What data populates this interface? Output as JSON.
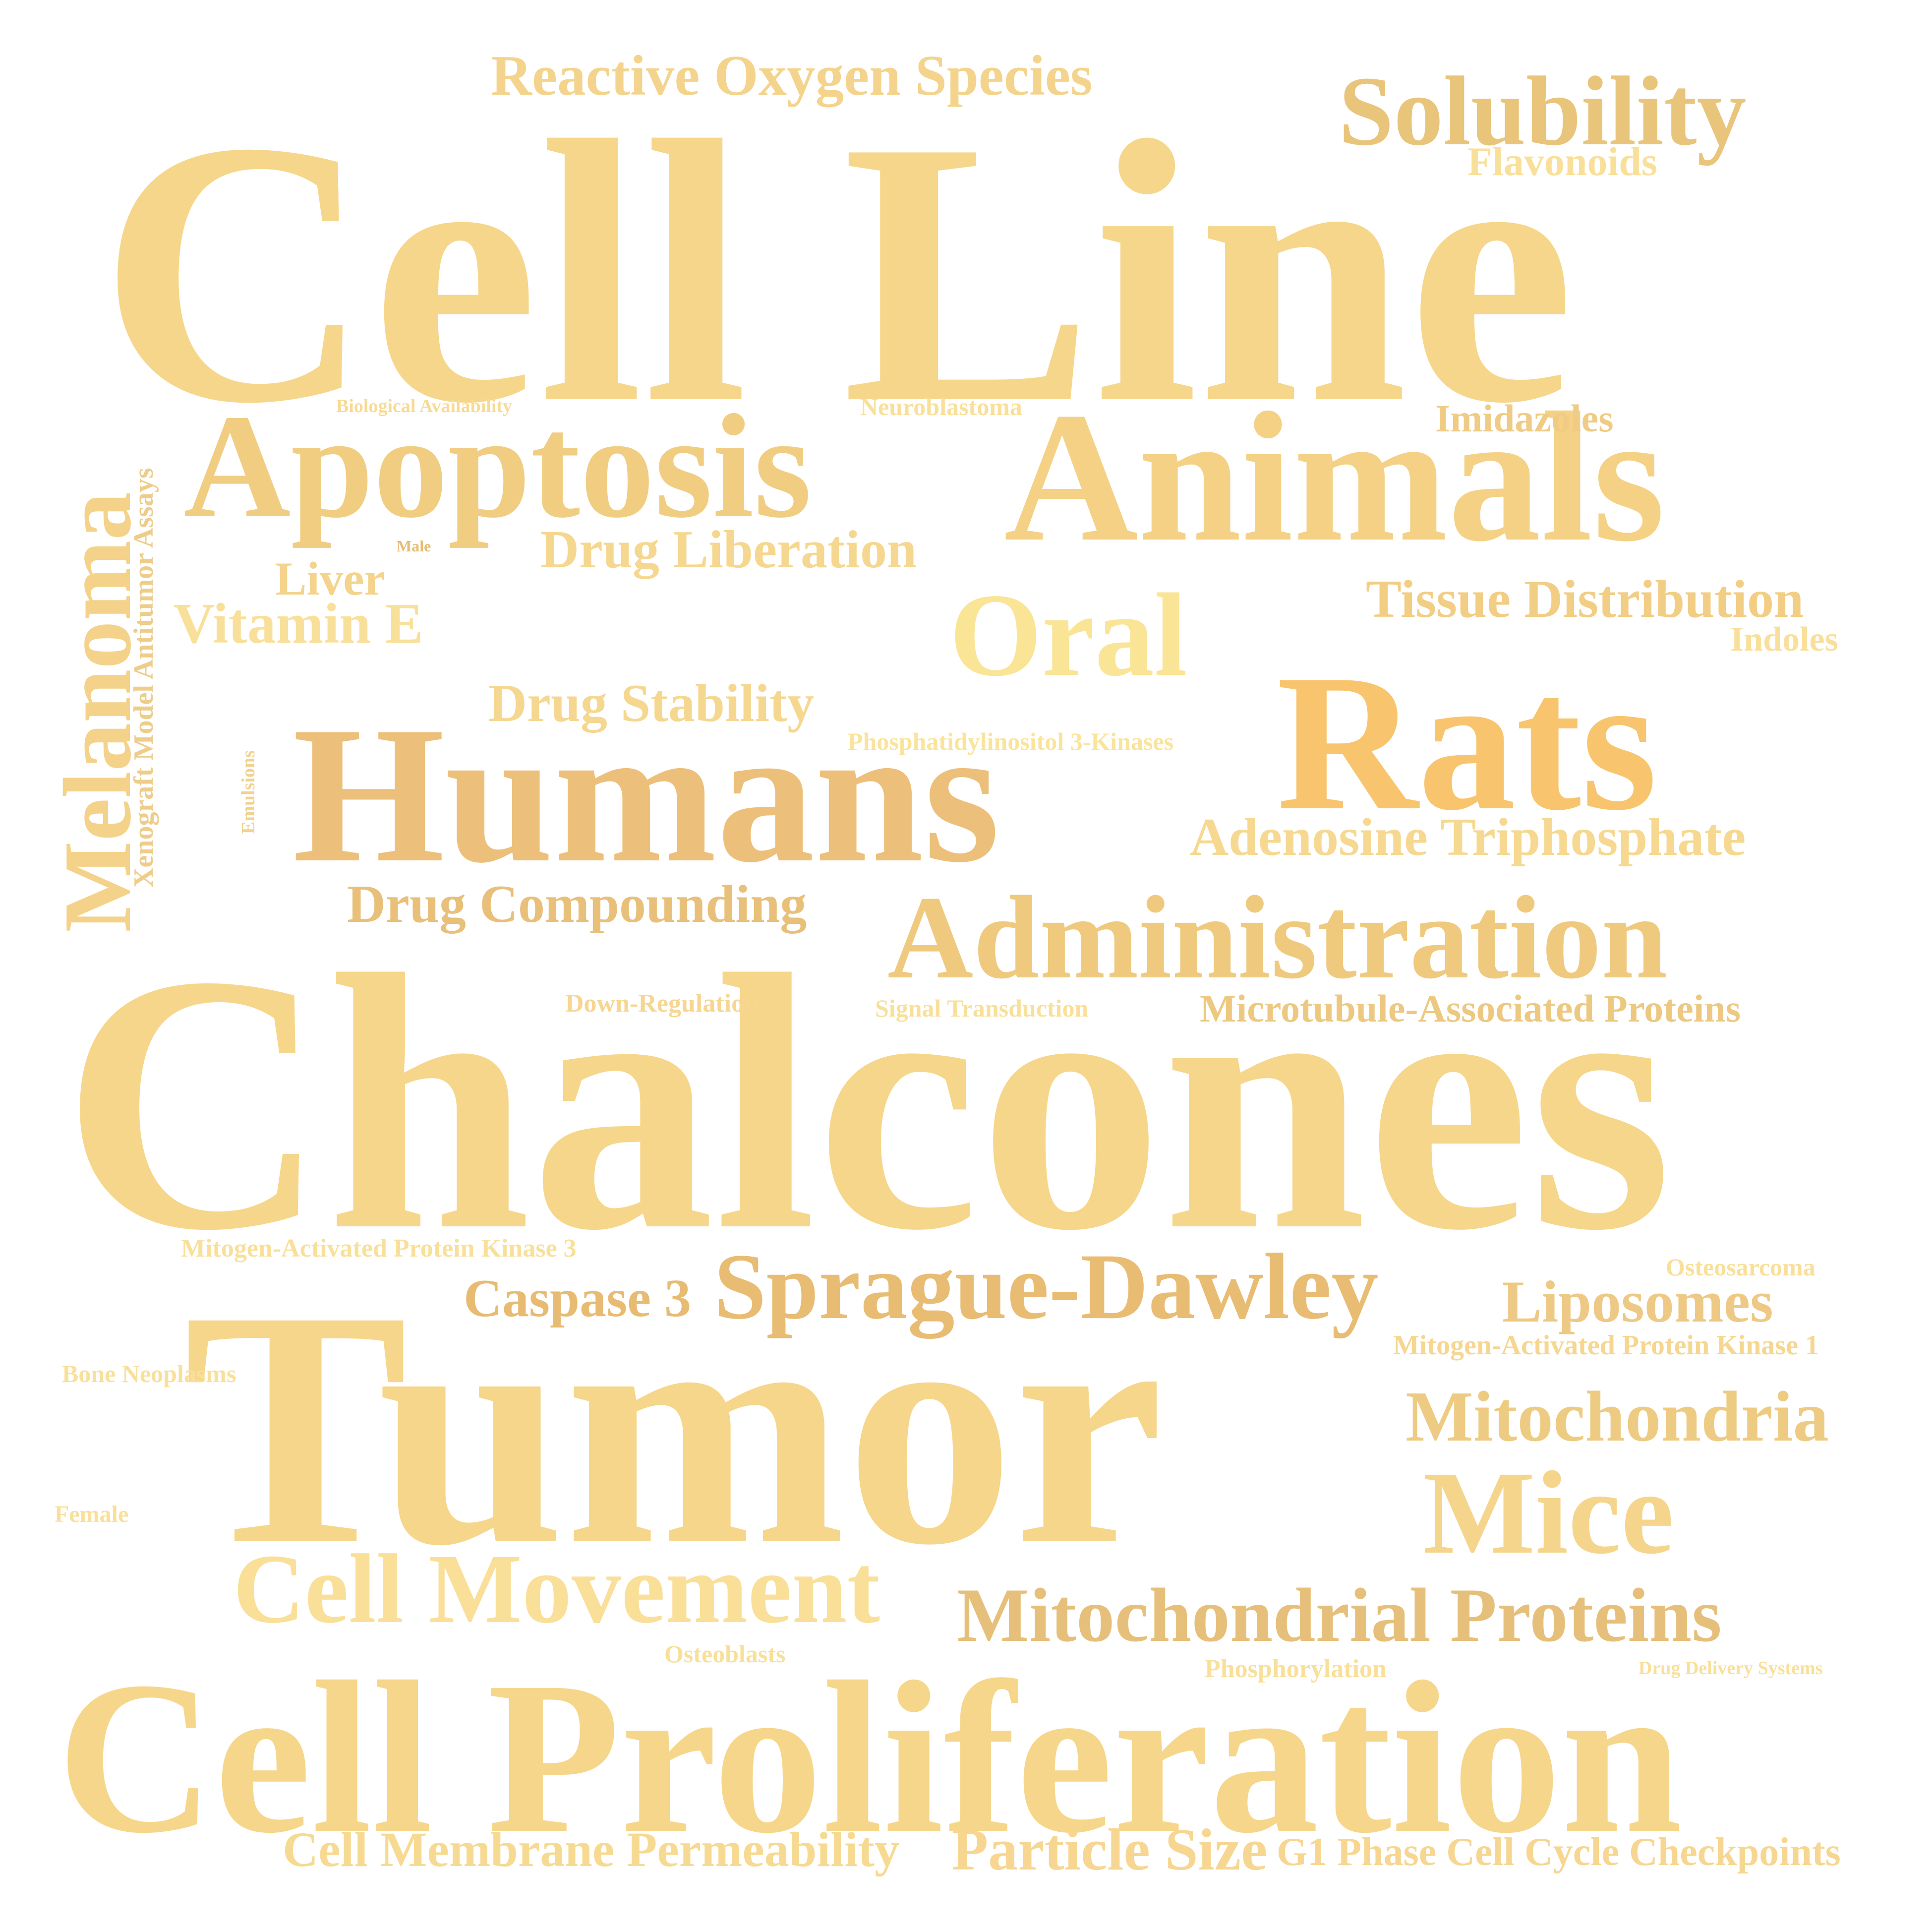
{
  "words": {
    "cell_line": "Cell Line",
    "chalcones": "Chalcones",
    "tumor": "Tumor",
    "cell_proliferation": "Cell Proliferation",
    "humans": "Humans",
    "rats": "Rats",
    "animals": "Animals",
    "apoptosis": "Apoptosis",
    "administration": "Administration",
    "solubility": "Solubility",
    "oral": "Oral",
    "mice": "Mice",
    "cell_movement": "Cell Movement",
    "sprague_dawley": "Sprague-Dawley",
    "mitochondrial_proteins": "Mitochondrial Proteins",
    "mitochondria": "Mitochondria",
    "melanoma": "Melanoma",
    "reactive_oxygen_species": "Reactive Oxygen Species",
    "drug_liberation": "Drug Liberation",
    "tissue_distribution": "Tissue Distribution",
    "adenosine_triphosphate": "Adenosine Triphosphate",
    "drug_compounding": "Drug Compounding",
    "drug_stability": "Drug Stability",
    "liposomes": "Liposomes",
    "caspase_3": "Caspase 3",
    "cell_membrane_permeability": "Cell Membrane Permeability",
    "particle_size": "Particle Size",
    "g1_phase": "G1 Phase Cell Cycle Checkpoints",
    "vitamin_e": "Vitamin E",
    "liver": "Liver",
    "microtubule_associated_proteins": "Microtubule-Associated Proteins",
    "flavonoids": "Flavonoids",
    "imidazoles": "Imidazoles",
    "indoles": "Indoles",
    "xenograft": "Xenograft Model Antitumor Assays",
    "phosphatidylinositol": "Phosphatidylinositol 3-Kinases",
    "neuroblastoma": "Neuroblastoma",
    "biological_availability": "Biological Availability",
    "male": "Male",
    "emulsions": "Emulsions",
    "down_regulation": "Down-Regulation",
    "signal_transduction": "Signal Transduction",
    "mapk3": "Mitogen-Activated Protein Kinase 3",
    "mapk1": "Mitogen-Activated Protein Kinase 1",
    "osteosarcoma": "Osteosarcoma",
    "bone_neoplasms": "Bone Neoplasms",
    "female": "Female",
    "osteoblasts": "Osteoblasts",
    "phosphorylation": "Phosphorylation",
    "drug_delivery_systems": "Drug Delivery Systems"
  },
  "palette": {
    "base": "#f6d68a",
    "light": "#f9e19a",
    "deep": "#e8bc72",
    "rats": "#f8c56e",
    "humans": "#ecc07a",
    "oral": "#fae496"
  }
}
